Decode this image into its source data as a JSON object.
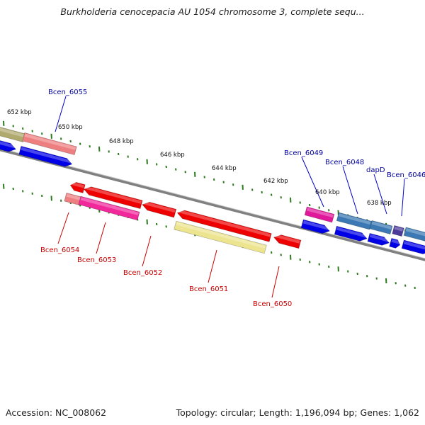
{
  "title": "Burkholderia cenocepacia AU 1054 chromosome 3, complete sequ...",
  "footer": {
    "accession": "Accession: NC_008062",
    "summary": "Topology: circular; Length: 1,196,094 bp; Genes: 1,062"
  },
  "colors": {
    "backbone": "#808080",
    "tick": "#2d7a1f",
    "forward_label": "#00009c",
    "reverse_label": "#c80000"
  },
  "scale_labels": [
    "652 kbp",
    "650 kbp",
    "648 kbp",
    "646 kbp",
    "644 kbp",
    "642 kbp",
    "640 kbp",
    "638 kbp"
  ],
  "forward_gene_labels": [
    "Bcen_6055",
    "Bcen_6049",
    "Bcen_6048",
    "dapD",
    "Bcen_6046"
  ],
  "reverse_gene_labels": [
    "Bcen_6054",
    "Bcen_6053",
    "Bcen_6052",
    "Bcen_6051",
    "Bcen_6050"
  ]
}
